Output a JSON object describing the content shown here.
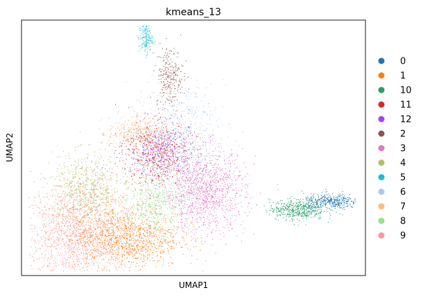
{
  "chart_data": {
    "type": "scatter",
    "title": "kmeans_13",
    "xlabel": "UMAP1",
    "ylabel": "UMAP2",
    "grid": false,
    "ticks": false,
    "legend_position": "right",
    "legend": [
      {
        "label": "0",
        "color": "#1f77b4"
      },
      {
        "label": "1",
        "color": "#ff7f0e"
      },
      {
        "label": "10",
        "color": "#279e68"
      },
      {
        "label": "11",
        "color": "#d62728"
      },
      {
        "label": "12",
        "color": "#aa40fc"
      },
      {
        "label": "2",
        "color": "#8c564b"
      },
      {
        "label": "3",
        "color": "#e377c2"
      },
      {
        "label": "4",
        "color": "#b5bd61"
      },
      {
        "label": "5",
        "color": "#17becf"
      },
      {
        "label": "6",
        "color": "#aec7e8"
      },
      {
        "label": "7",
        "color": "#ffbb78"
      },
      {
        "label": "8",
        "color": "#98df8a"
      },
      {
        "label": "9",
        "color": "#ff9896"
      }
    ],
    "clusters": [
      {
        "label": "9",
        "x": 0.16,
        "y": 0.16,
        "spread": [
          0.09,
          0.1
        ],
        "n": 1600
      },
      {
        "label": "1",
        "x": 0.3,
        "y": 0.15,
        "spread": [
          0.08,
          0.06
        ],
        "n": 1100
      },
      {
        "label": "4",
        "x": 0.19,
        "y": 0.33,
        "spread": [
          0.05,
          0.07
        ],
        "n": 700
      },
      {
        "label": "8",
        "x": 0.39,
        "y": 0.29,
        "spread": [
          0.04,
          0.06
        ],
        "n": 500
      },
      {
        "label": "3",
        "x": 0.53,
        "y": 0.33,
        "spread": [
          0.06,
          0.08
        ],
        "n": 1200
      },
      {
        "label": "11",
        "x": 0.39,
        "y": 0.48,
        "spread": [
          0.05,
          0.06
        ],
        "n": 600
      },
      {
        "label": "12",
        "x": 0.41,
        "y": 0.5,
        "spread": [
          0.05,
          0.05
        ],
        "n": 300
      },
      {
        "label": "6",
        "x": 0.45,
        "y": 0.53,
        "spread": [
          0.07,
          0.1
        ],
        "n": 700
      },
      {
        "label": "7",
        "x": 0.33,
        "y": 0.56,
        "spread": [
          0.04,
          0.03
        ],
        "n": 300
      },
      {
        "label": "2",
        "x": 0.43,
        "y": 0.78,
        "spread": [
          0.02,
          0.06
        ],
        "n": 250
      },
      {
        "label": "5",
        "x": 0.36,
        "y": 0.93,
        "spread": [
          0.01,
          0.03
        ],
        "n": 150
      },
      {
        "label": "10",
        "x": 0.8,
        "y": 0.26,
        "spread": [
          0.04,
          0.02
        ],
        "n": 450
      },
      {
        "label": "0",
        "x": 0.9,
        "y": 0.29,
        "spread": [
          0.04,
          0.015
        ],
        "n": 350
      }
    ]
  }
}
